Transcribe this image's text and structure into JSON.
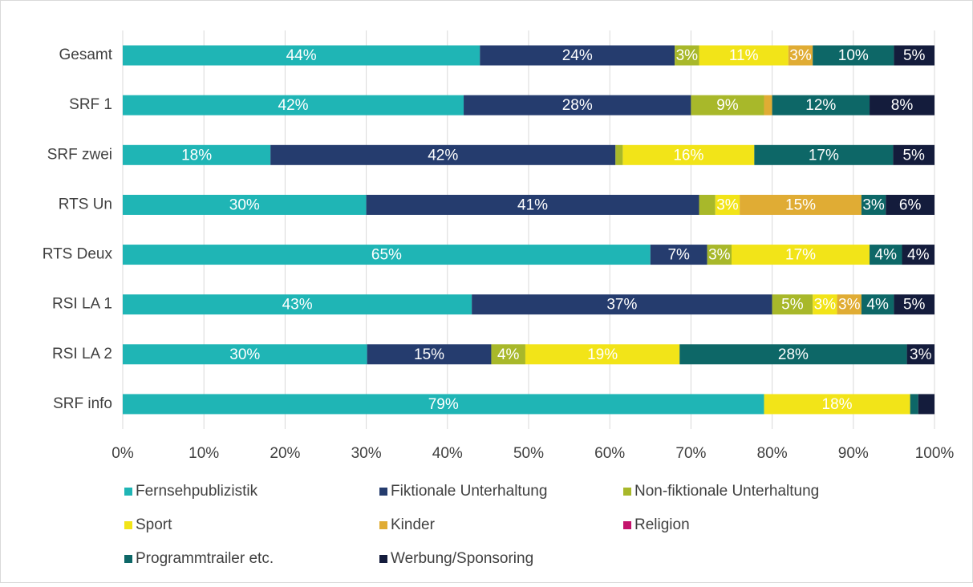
{
  "chart_data": {
    "type": "stacked_barh",
    "categories": [
      "Gesamt",
      "SRF 1",
      "SRF zwei",
      "RTS Un",
      "RTS Deux",
      "RSI LA 1",
      "RSI LA 2",
      "SRF info"
    ],
    "series": [
      {
        "name": "Fernsehpublizistik",
        "color": "#1fb5b5",
        "values": [
          44,
          42,
          18.2,
          30,
          65,
          43,
          30.1,
          79
        ],
        "value_labels": [
          "44%",
          "42%",
          "18%",
          "30%",
          "65%",
          "43%",
          "30%",
          "79%"
        ]
      },
      {
        "name": "Fiktionale Unterhaltung",
        "color": "#253c6e",
        "values": [
          24,
          28,
          42.5,
          41,
          7,
          37,
          15.3,
          0
        ],
        "value_labels": [
          "24%",
          "28%",
          "42%",
          "41%",
          "7%",
          "37%",
          "15%",
          null
        ]
      },
      {
        "name": "Non-fiktionale Unterhaltung",
        "color": "#a8b82a",
        "values": [
          3,
          9,
          0.9,
          2,
          3,
          5,
          4.2,
          0
        ],
        "value_labels": [
          "3%",
          "9%",
          null,
          null,
          "3%",
          "5%",
          "4%",
          null
        ]
      },
      {
        "name": "Sport",
        "color": "#f2e418",
        "values": [
          11,
          0,
          16.2,
          3,
          17,
          3,
          19,
          18
        ],
        "value_labels": [
          "11%",
          null,
          "16%",
          "3%",
          "17%",
          "3%",
          "19%",
          "18%"
        ]
      },
      {
        "name": "Kinder",
        "color": "#e0ac34",
        "values": [
          3,
          1,
          0,
          15,
          0,
          3,
          0,
          0
        ],
        "value_labels": [
          "3%",
          null,
          null,
          "15%",
          null,
          "3%",
          null,
          null
        ]
      },
      {
        "name": "Religion",
        "color": "#c4146c",
        "values": [
          0,
          0,
          0,
          0,
          0,
          0,
          0,
          0
        ],
        "value_labels": [
          null,
          null,
          null,
          null,
          null,
          null,
          null,
          null
        ]
      },
      {
        "name": "Programmtrailer etc.",
        "color": "#0d6767",
        "values": [
          10,
          12,
          17.1,
          3,
          4,
          4,
          28,
          1
        ],
        "value_labels": [
          "10%",
          "12%",
          "17%",
          "3%",
          "4%",
          "4%",
          "28%",
          null
        ]
      },
      {
        "name": "Werbung/Sponsoring",
        "color": "#141c3c",
        "values": [
          5,
          8,
          5.1,
          6,
          4,
          5,
          3.4,
          2
        ],
        "value_labels": [
          "5%",
          "8%",
          "5%",
          "6%",
          "4%",
          "5%",
          "3%",
          null
        ]
      }
    ],
    "xlim": [
      0,
      100
    ],
    "xticks": [
      {
        "value": 0,
        "label": "0%"
      },
      {
        "value": 10,
        "label": "10%"
      },
      {
        "value": 20,
        "label": "20%"
      },
      {
        "value": 30,
        "label": "30%"
      },
      {
        "value": 40,
        "label": "40%"
      },
      {
        "value": 50,
        "label": "50%"
      },
      {
        "value": 60,
        "label": "60%"
      },
      {
        "value": 70,
        "label": "70%"
      },
      {
        "value": 80,
        "label": "80%"
      },
      {
        "value": 90,
        "label": "90%"
      },
      {
        "value": 100,
        "label": "100%"
      }
    ],
    "grid": true,
    "legend": "bottom"
  }
}
